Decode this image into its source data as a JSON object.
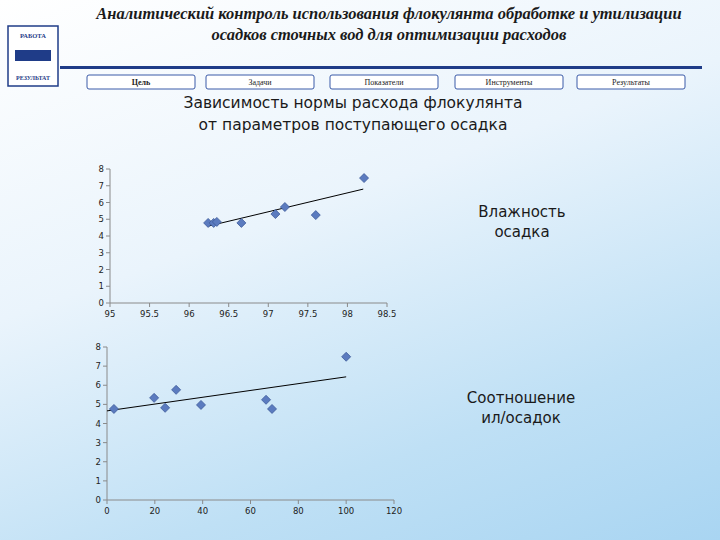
{
  "header": {
    "title": [
      "Аналитический контроль использования флокулянта обработке и утилизации",
      "осадков сточных вод для оптимизации расходов"
    ],
    "logo": [
      "РАБОТА",
      "РЕЗУЛЬТАТ"
    ]
  },
  "tabs": [
    "Цель",
    "Задачи",
    "Показатели",
    "Инструменты",
    "Результаты"
  ],
  "subtitle": [
    "Зависимость нормы расхода флокулянта",
    "от параметров поступающего осадка"
  ],
  "chart_data": [
    {
      "type": "scatter",
      "title": [
        "Влажность",
        "осадка"
      ],
      "x": [
        96.24,
        96.31,
        96.35,
        96.66,
        97.09,
        97.21,
        97.6,
        98.21
      ],
      "values": [
        4.78,
        4.78,
        4.84,
        4.78,
        5.31,
        5.73,
        5.25,
        7.46
      ],
      "color": "#5b7bbf",
      "marker": "diamond",
      "xlim": [
        95,
        98.5
      ],
      "xticks": [
        95,
        95.5,
        96,
        96.5,
        97,
        97.5,
        98,
        98.5
      ],
      "ylim": [
        0,
        8
      ],
      "yticks": [
        0,
        1,
        2,
        3,
        4,
        5,
        6,
        7,
        8
      ],
      "grid": false,
      "trendline": {
        "x": [
          96.25,
          98.2
        ],
        "values": [
          4.6,
          6.8
        ],
        "color": "#000000"
      }
    },
    {
      "type": "scatter",
      "title": [
        "Соотношение",
        "ил/осадок"
      ],
      "x": [
        2.9,
        19.7,
        24.3,
        28.9,
        39.3,
        66.5,
        69.0,
        100
      ],
      "values": [
        4.76,
        5.34,
        4.82,
        5.76,
        4.97,
        5.24,
        4.76,
        7.49
      ],
      "color": "#5b7bbf",
      "marker": "diamond",
      "xlim": [
        0,
        120
      ],
      "xticks": [
        0,
        20,
        40,
        60,
        80,
        100,
        120
      ],
      "ylim": [
        0,
        8
      ],
      "yticks": [
        0,
        1,
        2,
        3,
        4,
        5,
        6,
        7,
        8
      ],
      "grid": false,
      "trendline": {
        "x": [
          0,
          100
        ],
        "values": [
          4.66,
          6.44
        ],
        "color": "#000000"
      }
    }
  ]
}
